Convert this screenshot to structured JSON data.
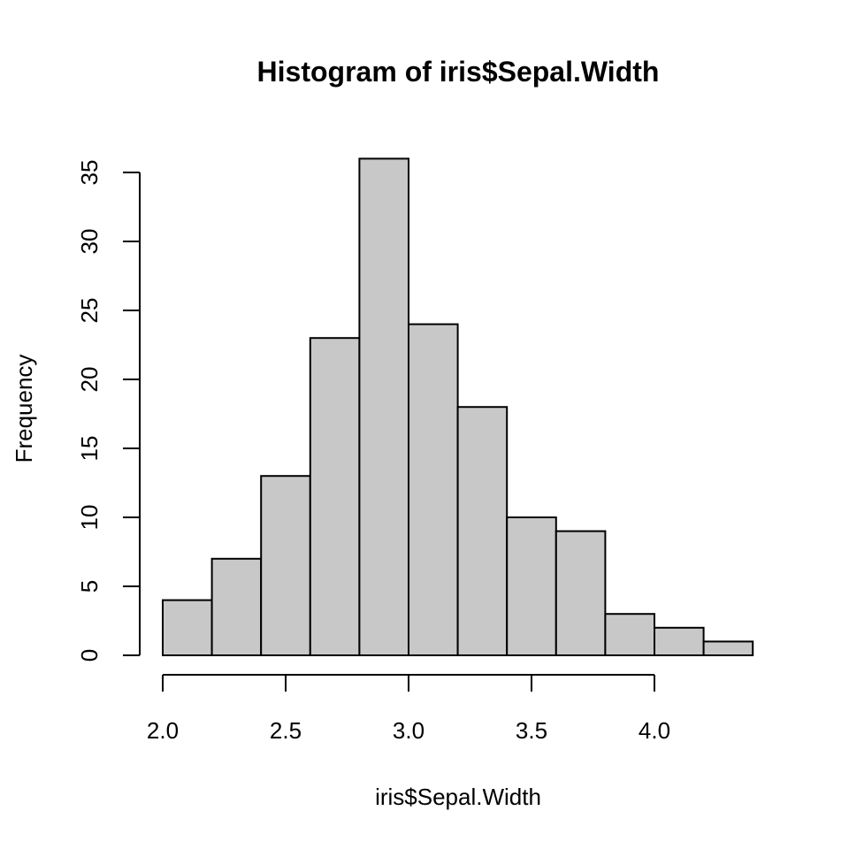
{
  "chart_data": {
    "type": "bar",
    "title": "Histogram of iris$Sepal.Width",
    "xlabel": "iris$Sepal.Width",
    "ylabel": "Frequency",
    "breaks": [
      2.0,
      2.2,
      2.4,
      2.6,
      2.8,
      3.0,
      3.2,
      3.4,
      3.6,
      3.8,
      4.0,
      4.2,
      4.4
    ],
    "values": [
      4,
      7,
      13,
      23,
      36,
      24,
      18,
      10,
      9,
      3,
      2,
      1
    ],
    "xticks": [
      2.0,
      2.5,
      3.0,
      3.5,
      4.0
    ],
    "xtick_labels": [
      "2.0",
      "2.5",
      "3.0",
      "3.5",
      "4.0"
    ],
    "yticks": [
      0,
      5,
      10,
      15,
      20,
      25,
      30,
      35
    ],
    "ytick_labels": [
      "0",
      "5",
      "10",
      "15",
      "20",
      "25",
      "30",
      "35"
    ],
    "bar_color": "#c8c8c8",
    "grid": false
  }
}
